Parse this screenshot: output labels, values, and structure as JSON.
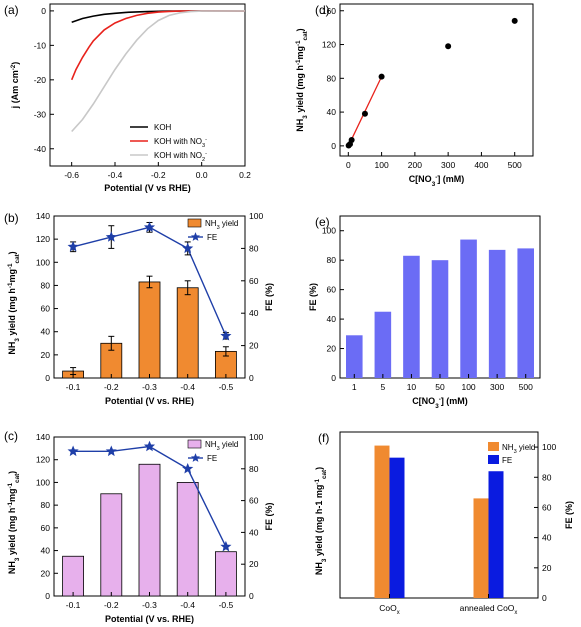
{
  "figure_labels": [
    "(a)",
    "(b)",
    "(c)",
    "(d)",
    "(e)",
    "(f)"
  ],
  "colors": {
    "koh": "#000000",
    "koh_no3": "#e8221c",
    "koh_no2": "#c8c8c8",
    "orange_bar": "#f08a30",
    "fe_line": "#1f3fa8",
    "pink_bar": "#e7b0ec",
    "blue_bar": "#6b6cf5",
    "blue_fe": "#0a1be0",
    "red_fit": "#e8221c"
  },
  "chart_data": [
    {
      "id": "a",
      "type": "line",
      "xlabel": "Potential (V vs RHE)",
      "ylabel": "j (Am cm⁻²)",
      "xlim": [
        -0.7,
        0.2
      ],
      "ylim": [
        -45,
        2
      ],
      "xticks": [
        -0.6,
        -0.4,
        -0.2,
        0.0,
        0.2
      ],
      "xticklabels": [
        "-0.6",
        "-0.4",
        "-0.2",
        "0.0",
        "0.2"
      ],
      "yticks": [
        0,
        -10,
        -20,
        -30,
        -40
      ],
      "yticklabels": [
        "0",
        "-10",
        "-20",
        "-30",
        "-40"
      ],
      "legend": [
        "KOH",
        "KOH with NO3-",
        "KOH with NO2-"
      ],
      "series": [
        {
          "name": "KOH",
          "x": [
            -0.6,
            -0.55,
            -0.5,
            -0.45,
            -0.4,
            -0.35,
            -0.3,
            -0.25,
            -0.2,
            -0.15,
            -0.1,
            0.0,
            0.2
          ],
          "y": [
            -3.3,
            -2.2,
            -1.5,
            -1.0,
            -0.7,
            -0.45,
            -0.3,
            -0.2,
            -0.12,
            -0.07,
            -0.04,
            -0.02,
            -0.01
          ]
        },
        {
          "name": "KOH with NO3-",
          "x": [
            -0.6,
            -0.58,
            -0.55,
            -0.52,
            -0.5,
            -0.45,
            -0.4,
            -0.35,
            -0.3,
            -0.25,
            -0.2,
            -0.15,
            -0.1,
            0.0,
            0.2
          ],
          "y": [
            -20,
            -17,
            -13.5,
            -10.5,
            -8.7,
            -5.5,
            -3.5,
            -2.2,
            -1.3,
            -0.7,
            -0.35,
            -0.15,
            -0.06,
            -0.02,
            -0.01
          ]
        },
        {
          "name": "KOH with NO2-",
          "x": [
            -0.6,
            -0.55,
            -0.5,
            -0.45,
            -0.4,
            -0.35,
            -0.3,
            -0.25,
            -0.2,
            -0.15,
            -0.1,
            -0.05,
            0.0,
            0.2
          ],
          "y": [
            -35,
            -31.5,
            -27,
            -22,
            -17,
            -12.5,
            -8.5,
            -5.2,
            -2.8,
            -1.3,
            -0.55,
            -0.2,
            -0.07,
            -0.01
          ]
        }
      ]
    },
    {
      "id": "b",
      "type": "bar",
      "xlabel": "Potential (V vs. RHE)",
      "ylabel": "NH3 yield (mg h⁻¹mg⁻¹cat)",
      "y2label": "FE (%)",
      "categories": [
        "-0.1",
        "-0.2",
        "-0.3",
        "-0.4",
        "-0.5"
      ],
      "ylim": [
        0,
        140
      ],
      "y2lim": [
        0,
        100
      ],
      "yticks": [
        0,
        20,
        40,
        60,
        80,
        100,
        120,
        140
      ],
      "y2ticks": [
        0,
        20,
        40,
        60,
        80,
        100
      ],
      "legend": [
        "NH3 yield",
        "FE"
      ],
      "bars": {
        "name": "NH3 yield",
        "values": [
          6,
          30,
          83,
          78,
          23
        ],
        "errors": [
          3,
          6,
          5,
          6,
          4
        ]
      },
      "line": {
        "name": "FE",
        "values": [
          81,
          87,
          93,
          80,
          26
        ],
        "errors": [
          3,
          7,
          3,
          4,
          2
        ]
      }
    },
    {
      "id": "c",
      "type": "bar",
      "xlabel": "Potential (V vs. RHE)",
      "ylabel": "NH3 yield (mg h⁻¹ mg⁻¹cat)",
      "y2label": "FE (%)",
      "categories": [
        "-0.1",
        "-0.2",
        "-0.3",
        "-0.4",
        "-0.5"
      ],
      "ylim": [
        0,
        140
      ],
      "y2lim": [
        0,
        100
      ],
      "yticks": [
        0,
        20,
        40,
        60,
        80,
        100,
        120,
        140
      ],
      "y2ticks": [
        0,
        20,
        40,
        60,
        80,
        100
      ],
      "legend": [
        "NH3 yield",
        "FE"
      ],
      "bars": {
        "name": "NH3 yield",
        "values": [
          35,
          90,
          116,
          100,
          39
        ]
      },
      "line": {
        "name": "FE",
        "values": [
          91,
          91,
          94,
          80,
          31
        ]
      }
    },
    {
      "id": "d",
      "type": "scatter",
      "xlabel": "C[NO3-] (mM)",
      "ylabel": "NH3 yield (mg h⁻¹mg⁻¹cat)",
      "xlim": [
        -25,
        555
      ],
      "ylim": [
        -12,
        168
      ],
      "xticks": [
        0,
        100,
        200,
        300,
        400,
        500
      ],
      "yticks": [
        0,
        40,
        80,
        120,
        160
      ],
      "x": [
        1,
        5,
        10,
        50,
        100,
        300,
        500
      ],
      "y": [
        0.5,
        2,
        7,
        38,
        82,
        118,
        148
      ],
      "fit": {
        "x": [
          1,
          100
        ],
        "y": [
          0.5,
          82
        ]
      }
    },
    {
      "id": "e",
      "type": "bar",
      "xlabel": "C[NO3-] (mM)",
      "ylabel": "FE (%)",
      "categories": [
        "1",
        "5",
        "10",
        "50",
        "100",
        "300",
        "500"
      ],
      "ylim": [
        0,
        110
      ],
      "yticks": [
        0,
        20,
        40,
        60,
        80,
        100
      ],
      "values": [
        29,
        45,
        83,
        80,
        94,
        87,
        88
      ]
    },
    {
      "id": "f",
      "type": "bar",
      "ylabel": "NH3 yield (mg h-1 mg⁻¹cat)",
      "y2label": "FE (%)",
      "categories": [
        "CoOx",
        "annealed CoOx"
      ],
      "y2lim": [
        0,
        110
      ],
      "y2ticks": [
        0,
        20,
        40,
        60,
        80,
        100
      ],
      "legend": [
        "NH3 yield",
        "FE"
      ],
      "series": [
        {
          "name": "NH3 yield",
          "values": [
            101,
            66
          ]
        },
        {
          "name": "FE",
          "values": [
            93,
            84
          ]
        }
      ]
    }
  ]
}
